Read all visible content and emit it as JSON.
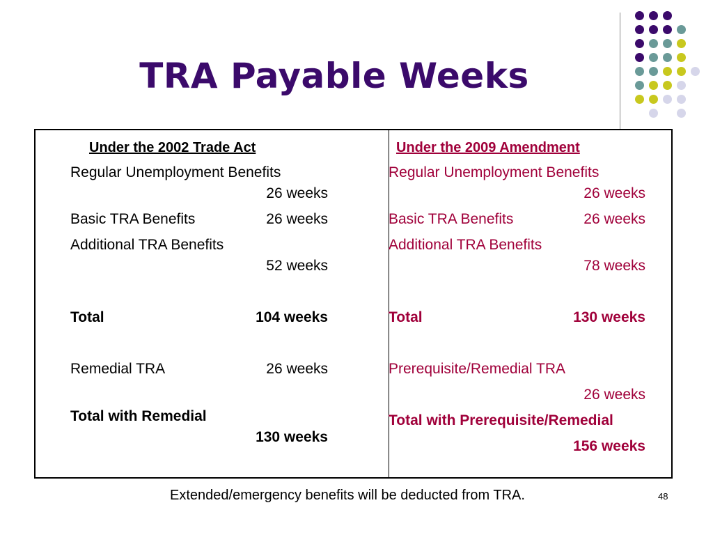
{
  "slide": {
    "title": "TRA Payable Weeks",
    "page_number": "48",
    "footer": "Extended/emergency benefits will be deducted from TRA."
  },
  "left": {
    "header": "Under the 2002 Trade Act",
    "row1_label": "Regular Unemployment Benefits",
    "row1_value": "26 weeks",
    "row2_label": "Basic TRA Benefits",
    "row2_value": "26 weeks",
    "row3_label": "Additional TRA Benefits",
    "row3_value": "52 weeks",
    "total_label": "Total",
    "total_value": "104 weeks",
    "remedial_label": "Remedial TRA",
    "remedial_value": "26 weeks",
    "total_remedial_label": "Total with Remedial",
    "total_remedial_value": "130 weeks"
  },
  "right": {
    "header": "Under the 2009 Amendment",
    "row1_label": "Regular Unemployment Benefits",
    "row1_value": "26 weeks",
    "row2_label": "Basic TRA Benefits",
    "row2_value": "26 weeks",
    "row3_label": "Additional TRA Benefits",
    "row3_value": "78 weeks",
    "total_label": "Total",
    "total_value": "130 weeks",
    "remedial_label": "Prerequisite/Remedial TRA",
    "remedial_value": "26 weeks",
    "total_remedial_label": "Total with Prerequisite/Remedial",
    "total_remedial_value": "156 weeks"
  },
  "colors": {
    "purple": "#3b0a6b",
    "teal": "#6a9a98",
    "yellow": "#c8c81e",
    "lavender": "#d6d6ea",
    "red_text": "#a0003a"
  }
}
